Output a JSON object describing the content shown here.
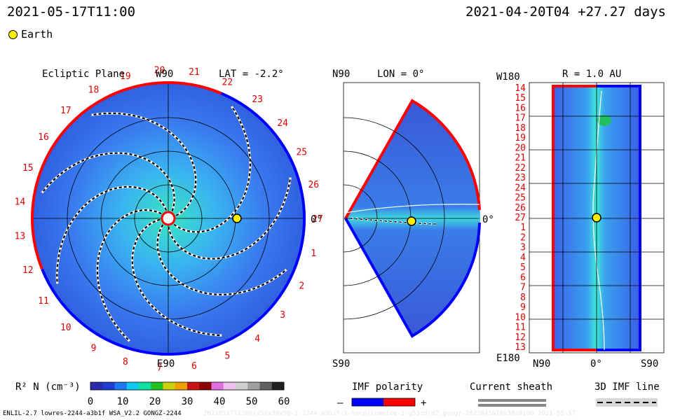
{
  "header": {
    "timestamp_left": "2021-05-17T11:00",
    "timestamp_right": "2021-04-20T04 +27.27 days",
    "earth_legend": "Earth"
  },
  "ecliptic": {
    "title": "Ecliptic Plane",
    "top_axis": "W90",
    "bottom_axis": "E90",
    "lat_label": "LAT = -2.2°",
    "right_zero": "0°",
    "ring_numbers": [
      "1",
      "2",
      "3",
      "4",
      "5",
      "6",
      "7",
      "8",
      "9",
      "10",
      "11",
      "12",
      "13",
      "14",
      "15",
      "16",
      "17",
      "18",
      "19",
      "20",
      "21",
      "22",
      "23",
      "24",
      "25",
      "26",
      "27"
    ]
  },
  "meridional": {
    "top_label": "N90",
    "bottom_label": "S90",
    "lon_label": "LON = 0°",
    "right_zero": "0°"
  },
  "mercator": {
    "title": "R = 1.0 AU",
    "top_left": "W180",
    "bottom_left": "E180",
    "x_ticks": [
      "N90",
      "0°",
      "S90"
    ],
    "y_ticks": [
      "14",
      "15",
      "16",
      "17",
      "18",
      "19",
      "20",
      "21",
      "22",
      "23",
      "24",
      "25",
      "26",
      "27",
      "1",
      "2",
      "3",
      "4",
      "5",
      "6",
      "7",
      "8",
      "9",
      "10",
      "11",
      "12",
      "13"
    ]
  },
  "colorbar": {
    "label": "R² N (cm⁻³)",
    "ticks": [
      "0",
      "10",
      "20",
      "30",
      "40",
      "50",
      "60"
    ],
    "range": [
      0,
      60
    ],
    "colors": [
      "#2a2aaa",
      "#1e3cd2",
      "#1e78f0",
      "#10c8f0",
      "#10e0a0",
      "#20c020",
      "#c8d010",
      "#f0a000",
      "#c81414",
      "#8c0000",
      "#e070e0",
      "#f0c0f0",
      "#d0d0d0",
      "#a0a0a0",
      "#606060",
      "#202020"
    ]
  },
  "imf_polarity": {
    "label": "IMF polarity",
    "minus": "–",
    "plus": "+",
    "neg_color": "#0000ff",
    "pos_color": "#ff0000"
  },
  "current_sheath": {
    "label": "Current sheath"
  },
  "imf_line": {
    "label": "3D IMF line"
  },
  "footer": {
    "model_info": "ENLIL-2.7 lowres-2244-a3b1f WSA_V2.2 GONGZ-2244",
    "faint_info": "20210517T1100/256x30x90-1-2244-a3b1f:1-hscp/lume1ce-1-g53qdrd2_gongz-2021041&T0&30z0100   2021-05-17"
  },
  "chart_data": [
    {
      "type": "heatmap",
      "title": "Ecliptic Plane",
      "subtitle": "LAT = -2.2°",
      "quantity": "R² N (cm⁻³)",
      "value_range": [
        0,
        60
      ],
      "axis_labels": {
        "top": "W90",
        "bottom": "E90",
        "right": "0°"
      },
      "markers": [
        {
          "name": "Earth",
          "angle_deg": 0,
          "r_au": 1.0
        }
      ]
    },
    {
      "type": "heatmap",
      "title": "LON = 0°",
      "axis_labels": {
        "top": "N90",
        "bottom": "S90",
        "right": "0°"
      },
      "markers": [
        {
          "name": "Earth",
          "lat_deg": 0,
          "r_au": 1.0
        }
      ]
    },
    {
      "type": "heatmap",
      "title": "R = 1.0 AU",
      "xlabel_ticks": [
        "N90",
        "0°",
        "S90"
      ],
      "ylabel_ticks": [
        "14",
        "15",
        "16",
        "17",
        "18",
        "19",
        "20",
        "21",
        "22",
        "23",
        "24",
        "25",
        "26",
        "27",
        "1",
        "2",
        "3",
        "4",
        "5",
        "6",
        "7",
        "8",
        "9",
        "10",
        "11",
        "12",
        "13"
      ],
      "axis_labels": {
        "top": "W180",
        "bottom": "E180"
      },
      "markers": [
        {
          "name": "Earth",
          "lat_deg": 0,
          "longitude_label": "27"
        }
      ]
    }
  ]
}
